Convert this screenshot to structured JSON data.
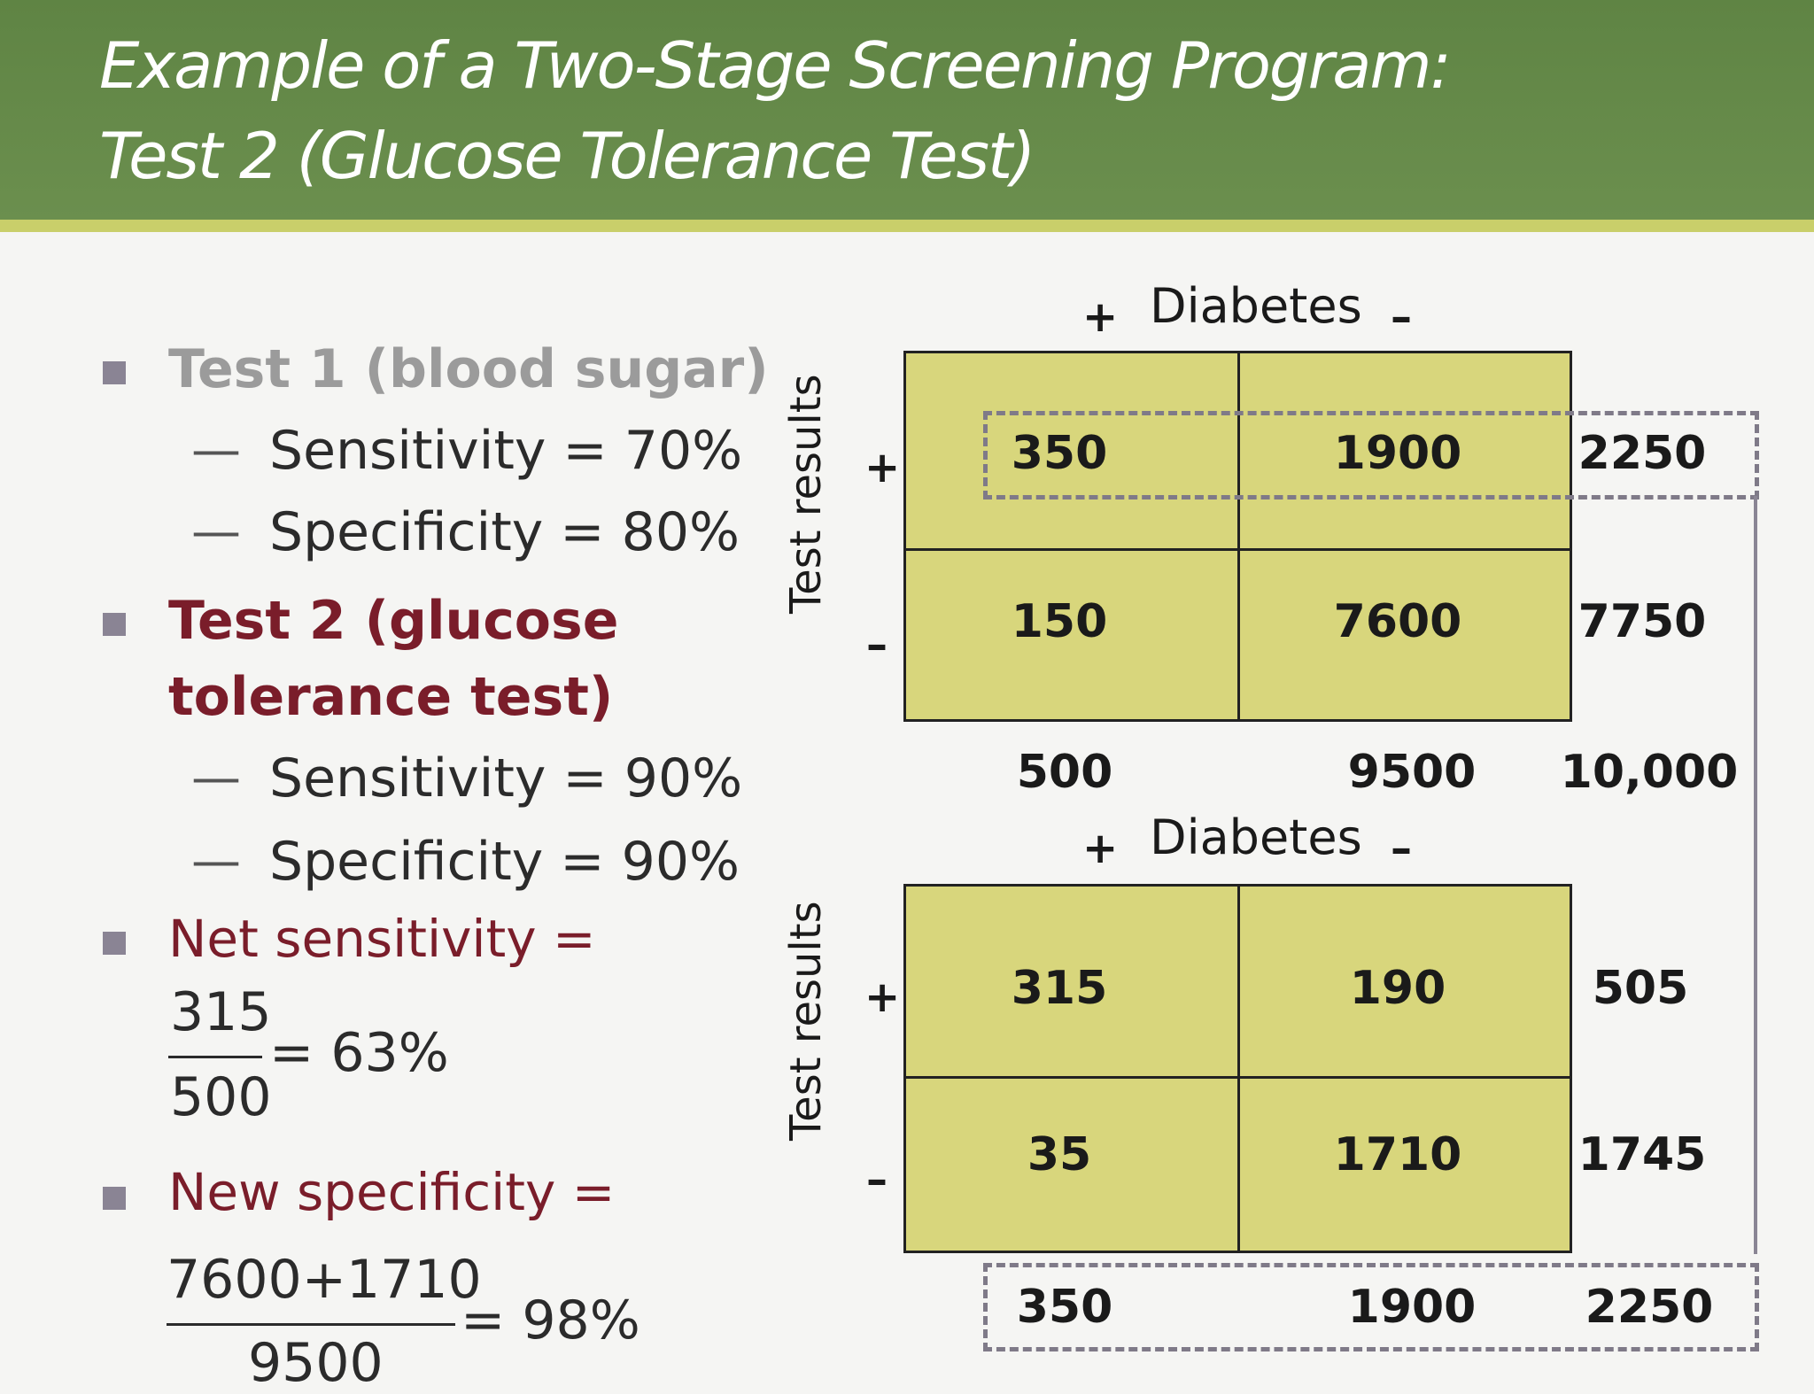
{
  "title": {
    "line1": "Example of a Two-Stage Screening Program:",
    "line2": "Test 2 (Glucose Tolerance Test)"
  },
  "left": {
    "test1": {
      "label": "Test 1 (blood sugar)",
      "sensitivity": "Sensitivity = 70%",
      "specificity": "Specificity = 80%"
    },
    "test2": {
      "label_line1": "Test 2 (glucose",
      "label_line2": "tolerance test)",
      "sensitivity": "Sensitivity = 90%",
      "specificity": "Specificity = 90%"
    },
    "net_sensitivity": {
      "label": "Net sensitivity =",
      "numerator": "315",
      "denominator": "500",
      "result": "= 63%"
    },
    "new_specificity": {
      "label": "New specificity =",
      "numerator": "7600+1710",
      "denominator": "9500",
      "result": "= 98%"
    },
    "dash": "—"
  },
  "table1": {
    "col_header": "Diabetes",
    "plus": "+",
    "minus": "–",
    "row_label": "Test results",
    "cells": [
      "350",
      "1900",
      "150",
      "7600"
    ],
    "row_totals": [
      "2250",
      "7750"
    ],
    "col_totals": [
      "500",
      "9500",
      "10,000"
    ]
  },
  "table2": {
    "col_header": "Diabetes",
    "plus": "+",
    "minus": "–",
    "row_label": "Test results",
    "cells": [
      "315",
      "190",
      "35",
      "1710"
    ],
    "row_totals": [
      "505",
      "1745"
    ],
    "col_totals": [
      "350",
      "1900",
      "2250"
    ]
  },
  "colors": {
    "header_green": "#6b8f4e",
    "stripe": "#c9cf6a",
    "cell_fill": "#d8d67c",
    "maroon": "#7a1d2a",
    "dash_gray": "#7f7a88"
  }
}
